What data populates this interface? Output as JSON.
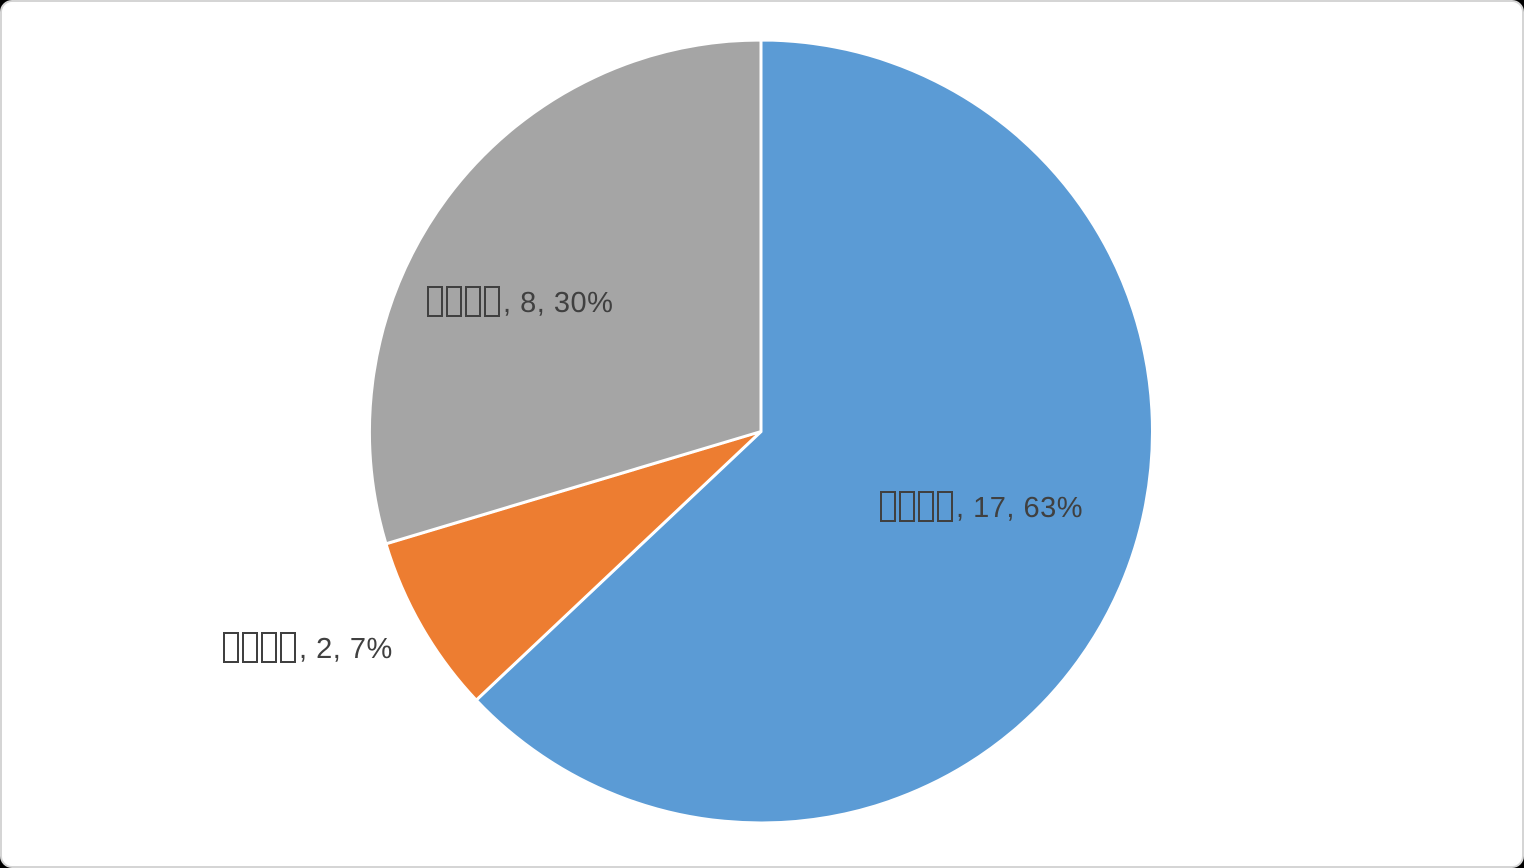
{
  "frame": {
    "background": "#ffffff",
    "border_color": "#d5d5d5",
    "outer_corner_color": "#000000"
  },
  "chart_data": {
    "type": "pie",
    "title": "",
    "legend": "none",
    "categories": [
      "□□□□",
      "□□□□",
      "□□□□"
    ],
    "values": [
      17,
      2,
      8
    ],
    "percents": [
      63,
      7,
      30
    ],
    "total": 27,
    "start_angle_deg": 0,
    "direction": "clockwise",
    "label_color": "#404040",
    "separator_color": "#ffffff",
    "slices": [
      {
        "category_display": "□□□□",
        "missing_glyph_boxes": 4,
        "value": 17,
        "percent": 63,
        "color": "#5B9BD5",
        "label_text": ", 17, 63%"
      },
      {
        "category_display": "□□□□",
        "missing_glyph_boxes": 4,
        "value": 2,
        "percent": 7,
        "color": "#ED7D31",
        "label_text": ", 2, 7%"
      },
      {
        "category_display": "□□□□",
        "missing_glyph_boxes": 4,
        "value": 8,
        "percent": 30,
        "color": "#A5A5A5",
        "label_text": ", 8, 30%"
      }
    ]
  }
}
